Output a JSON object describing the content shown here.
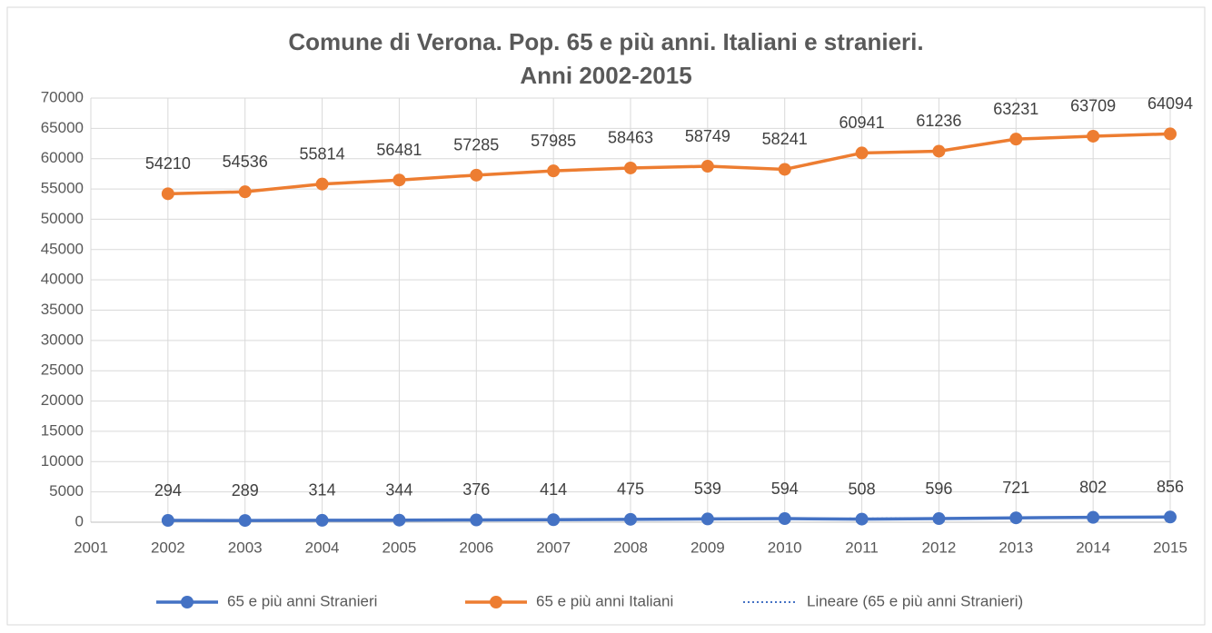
{
  "chart_data": {
    "type": "line",
    "title": [
      "Comune di Verona. Pop. 65 e più anni. Italiani e stranieri.",
      "Anni 2002-2015"
    ],
    "x": [
      2002,
      2003,
      2004,
      2005,
      2006,
      2007,
      2008,
      2009,
      2010,
      2011,
      2012,
      2013,
      2014,
      2015
    ],
    "series": [
      {
        "name": "65 e più anni Stranieri",
        "color": "#4472c4",
        "values": [
          294,
          289,
          314,
          344,
          376,
          414,
          475,
          539,
          594,
          508,
          596,
          721,
          802,
          856
        ]
      },
      {
        "name": "65 e più anni Italiani",
        "color": "#ed7d31",
        "values": [
          54210,
          54536,
          55814,
          56481,
          57285,
          57985,
          58463,
          58749,
          58241,
          60941,
          61236,
          63231,
          63709,
          64094
        ]
      }
    ],
    "trendline": {
      "name": "Lineare (65 e più anni Stranieri)",
      "color": "#4472c4",
      "x": [
        2002,
        2015
      ],
      "values": [
        228,
        789
      ]
    },
    "xlim": [
      2001,
      2015
    ],
    "xticks": [
      2001,
      2002,
      2003,
      2004,
      2005,
      2006,
      2007,
      2008,
      2009,
      2010,
      2011,
      2012,
      2013,
      2014,
      2015
    ],
    "ylim": [
      0,
      70000
    ],
    "yticks": [
      0,
      5000,
      10000,
      15000,
      20000,
      25000,
      30000,
      35000,
      40000,
      45000,
      50000,
      55000,
      60000,
      65000,
      70000
    ],
    "grid": true,
    "legend": "bottom"
  }
}
